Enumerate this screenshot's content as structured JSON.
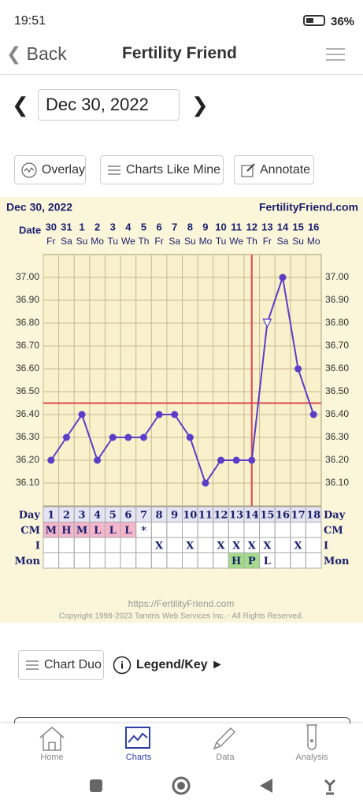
{
  "status_bar": {
    "time": "19:51",
    "battery": "36%"
  },
  "header": {
    "back": "Back",
    "title": "Fertility Friend"
  },
  "date_nav": {
    "date": "Dec 30, 2022"
  },
  "toolbar": {
    "buttons": [
      "Overlay",
      "Charts Like Mine",
      "Annotate"
    ]
  },
  "chart_data": {
    "type": "line",
    "title": "Dec 30, 2022",
    "site": "FertilityFriend.com",
    "date_label": "Date",
    "dates": [
      "30",
      "31",
      "1",
      "2",
      "3",
      "4",
      "5",
      "6",
      "7",
      "8",
      "9",
      "10",
      "11",
      "12",
      "13",
      "14",
      "15",
      "16"
    ],
    "weekdays": [
      "Fr",
      "Sa",
      "Su",
      "Mo",
      "Tu",
      "We",
      "Th",
      "Fr",
      "Sa",
      "Su",
      "Mo",
      "Tu",
      "We",
      "Th",
      "Fr",
      "Sa",
      "Su",
      "Mo"
    ],
    "x": [
      1,
      2,
      3,
      4,
      5,
      6,
      7,
      8,
      9,
      10,
      11,
      12,
      13,
      14,
      15,
      16,
      17,
      18
    ],
    "series": [
      {
        "color": "#5a3ec8",
        "values": [
          36.2,
          36.3,
          36.4,
          36.2,
          36.3,
          36.3,
          36.3,
          36.4,
          36.4,
          36.3,
          36.1,
          36.2,
          36.2,
          36.2,
          36.8,
          37.0,
          36.6,
          36.4
        ]
      }
    ],
    "open_points": [
      15
    ],
    "xlim": [
      0.5,
      18.5
    ],
    "ylim": [
      36.0,
      37.1
    ],
    "yticks": [
      {
        "value": 36.1,
        "label": "36.10"
      },
      {
        "value": 36.2,
        "label": "36.20"
      },
      {
        "value": 36.3,
        "label": "36.30"
      },
      {
        "value": 36.4,
        "label": "36.40"
      },
      {
        "value": 36.5,
        "label": "36.50"
      },
      {
        "value": 36.6,
        "label": "36.60"
      },
      {
        "value": 36.7,
        "label": "36.70"
      },
      {
        "value": 36.8,
        "label": "36.80"
      },
      {
        "value": 36.9,
        "label": "36.90"
      },
      {
        "value": 37.0,
        "label": "37.00"
      }
    ],
    "coverline": 36.45,
    "ovulation_day": 14,
    "marker_color": "#e0474c",
    "rows": [
      {
        "label": "Day",
        "cells": [
          "1",
          "2",
          "3",
          "4",
          "5",
          "6",
          "7",
          "8",
          "9",
          "10",
          "11",
          "12",
          "13",
          "14",
          "15",
          "16",
          "17",
          "18"
        ],
        "colors": [
          null,
          null,
          null,
          null,
          null,
          null,
          null,
          null,
          null,
          null,
          null,
          null,
          null,
          null,
          null,
          null,
          null,
          null
        ]
      },
      {
        "label": "CM",
        "cells": [
          "M",
          "H",
          "M",
          "L",
          "L",
          "L",
          "*",
          null,
          null,
          null,
          null,
          null,
          null,
          null,
          null,
          null,
          null,
          null
        ],
        "colors": [
          "#f4b6cb",
          "#f4b6cb",
          "#f4b6cb",
          "#f4b6cb",
          "#f4b6cb",
          "#f4b6cb",
          null,
          null,
          null,
          null,
          null,
          null,
          null,
          null,
          null,
          null,
          null,
          null
        ]
      },
      {
        "label": "I",
        "cells": [
          null,
          null,
          null,
          null,
          null,
          null,
          null,
          "X",
          null,
          "X",
          null,
          "X",
          "X",
          "X",
          "X",
          null,
          "X",
          null
        ],
        "colors": [
          null,
          null,
          null,
          null,
          null,
          null,
          null,
          null,
          null,
          null,
          null,
          null,
          null,
          null,
          null,
          null,
          null,
          null
        ]
      },
      {
        "label": "Mon",
        "cells": [
          null,
          null,
          null,
          null,
          null,
          null,
          null,
          null,
          null,
          null,
          null,
          null,
          "H",
          "P",
          "L",
          null,
          null,
          null
        ],
        "colors": [
          null,
          null,
          null,
          null,
          null,
          null,
          null,
          null,
          null,
          null,
          null,
          null,
          "#a5dc8c",
          "#a5dc8c",
          null,
          null,
          null,
          null
        ]
      }
    ],
    "footer_url": "https://FertilityFriend.com",
    "copyright": "Copyright 1998-2023 Tamtris Web Services Inc. - All Rights Reserved."
  },
  "bottom": {
    "chart_duo": "Chart Duo",
    "legend": "Legend/Key ►"
  },
  "nav": {
    "items": [
      "Home",
      "Charts",
      "Data",
      "Analysis"
    ],
    "active": 1
  }
}
